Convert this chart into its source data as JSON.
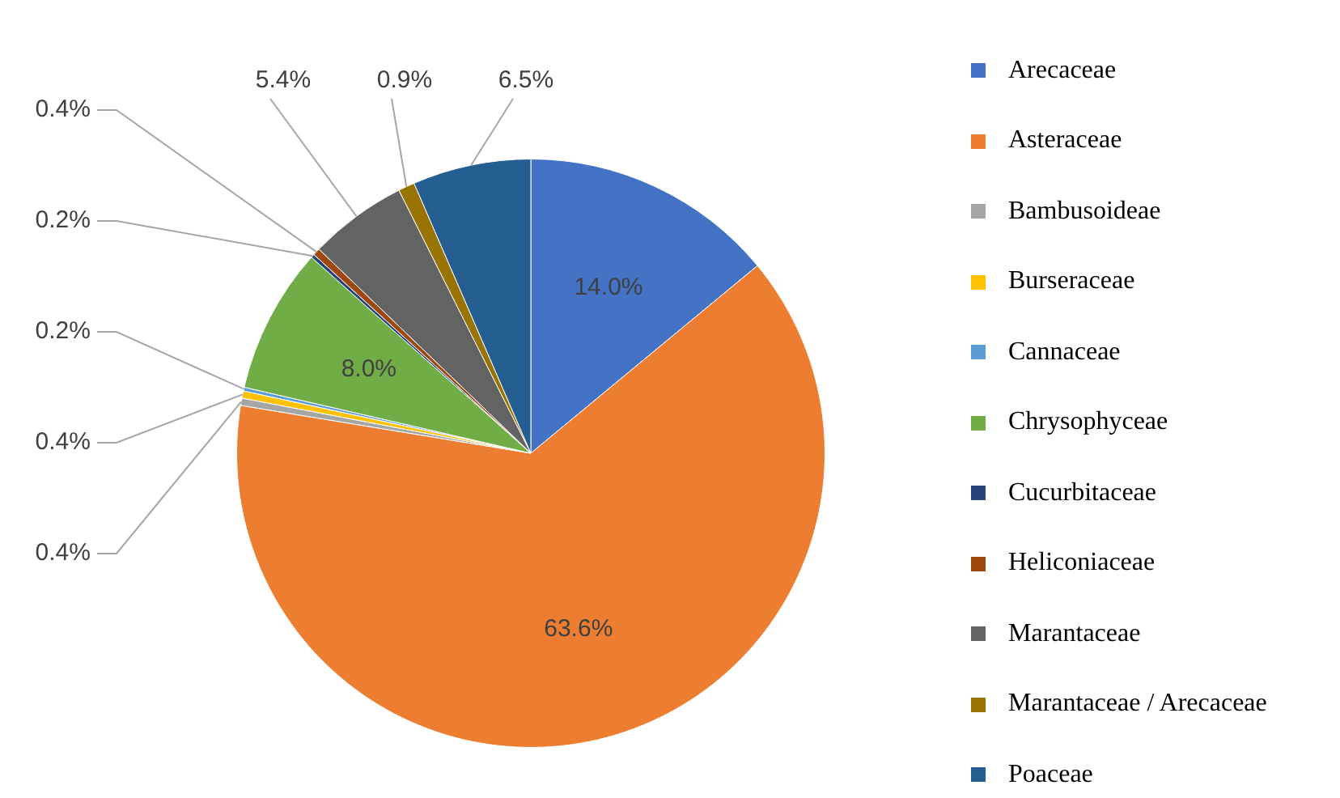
{
  "chart_data": {
    "type": "pie",
    "categories": [
      "Arecaceae",
      "Asteraceae",
      "Bambusoideae",
      "Burseraceae",
      "Cannaceae",
      "Chrysophyceae",
      "Cucurbitaceae",
      "Heliconiaceae",
      "Marantaceae",
      "Marantaceae / Arecaceae",
      "Poaceae"
    ],
    "values": [
      14.0,
      63.6,
      0.4,
      0.4,
      0.2,
      8.0,
      0.2,
      0.4,
      5.4,
      0.9,
      6.5
    ],
    "value_labels": [
      "14.0%",
      "63.6%",
      "0.4%",
      "0.4%",
      "0.2%",
      "8.0%",
      "0.2%",
      "0.4%",
      "5.4%",
      "0.9%",
      "6.5%"
    ],
    "colors": [
      "#4472c4",
      "#ed7d31",
      "#a5a5a5",
      "#ffc000",
      "#5b9bd5",
      "#70ad47",
      "#264478",
      "#9e480e",
      "#636363",
      "#997300",
      "#255e91"
    ],
    "legend": "right"
  }
}
